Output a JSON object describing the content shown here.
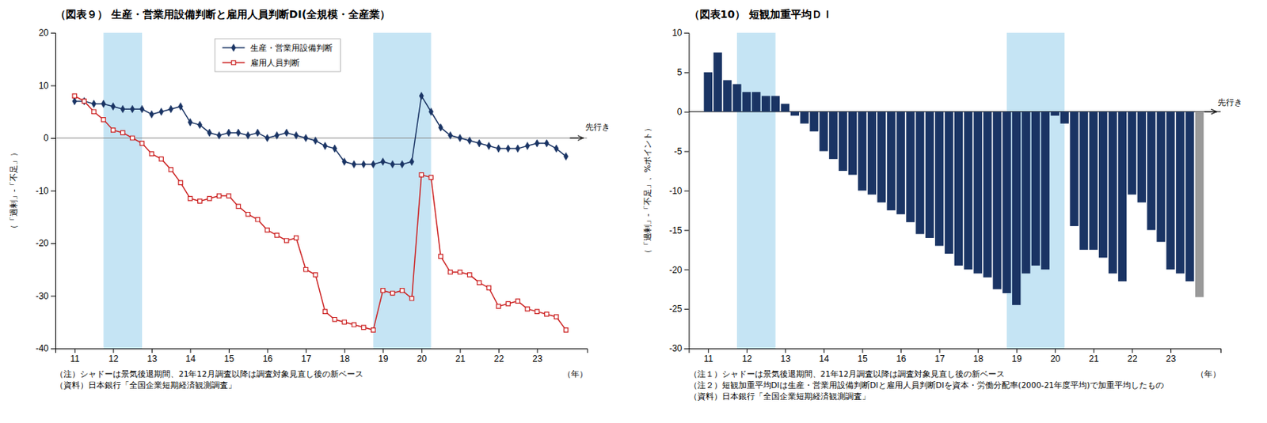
{
  "chart_data": [
    {
      "type": "line",
      "title": "（図表９）  生産・営業用設備判断と雇用人員判断DI(全規模・全産業）",
      "xlabel": "（年）",
      "ylabel": "（「過剰」-「不足」）",
      "x": [
        11.0,
        11.25,
        11.5,
        11.75,
        12.0,
        12.25,
        12.5,
        12.75,
        13.0,
        13.25,
        13.5,
        13.75,
        14.0,
        14.25,
        14.5,
        14.75,
        15.0,
        15.25,
        15.5,
        15.75,
        16.0,
        16.25,
        16.5,
        16.75,
        17.0,
        17.25,
        17.5,
        17.75,
        18.0,
        18.25,
        18.5,
        18.75,
        19.0,
        19.25,
        19.5,
        19.75,
        20.0,
        20.25,
        20.5,
        20.75,
        21.0,
        21.25,
        21.5,
        21.75,
        22.0,
        22.25,
        22.5,
        22.75,
        23.0,
        23.25,
        23.5,
        23.75
      ],
      "series": [
        {
          "name": "生産・営業用設備判断",
          "color": "#1a3464",
          "marker": "diamond",
          "values": [
            7.0,
            7.0,
            6.5,
            6.5,
            6.0,
            5.5,
            5.5,
            5.5,
            4.5,
            5.0,
            5.5,
            6.0,
            3.0,
            2.5,
            1.0,
            0.5,
            1.0,
            1.0,
            0.5,
            1.0,
            0.0,
            0.5,
            1.0,
            0.5,
            0.0,
            -0.5,
            -1.5,
            -2.0,
            -4.5,
            -5.0,
            -5.0,
            -5.0,
            -4.5,
            -5.0,
            -5.0,
            -4.5,
            8.0,
            5.0,
            2.0,
            0.5,
            0.0,
            -0.5,
            -1.0,
            -1.5,
            -2.0,
            -2.0,
            -2.0,
            -1.5,
            -1.0,
            -1.0,
            -2.0,
            -3.5
          ]
        },
        {
          "name": "雇用人員判断",
          "color": "#cc2222",
          "marker": "square-open",
          "values": [
            8.0,
            7.0,
            5.0,
            3.5,
            1.5,
            1.0,
            0.0,
            -1.0,
            -3.0,
            -4.0,
            -6.0,
            -8.5,
            -11.5,
            -12.0,
            -11.5,
            -11.0,
            -11.0,
            -13.0,
            -14.5,
            -15.5,
            -17.5,
            -18.5,
            -19.5,
            -19.0,
            -25.0,
            -26.0,
            -33.0,
            -34.5,
            -35.0,
            -35.5,
            -36.0,
            -36.5,
            -29.0,
            -29.5,
            -29.0,
            -30.5,
            -7.0,
            -7.5,
            -22.5,
            -25.5,
            -25.5,
            -26.0,
            -27.5,
            -28.5,
            -32.0,
            -31.5,
            -31.0,
            -32.5,
            -33.0,
            -33.5,
            -34.0,
            -36.5
          ]
        }
      ],
      "xlim": [
        10.5,
        24.3
      ],
      "xticks": [
        11,
        12,
        13,
        14,
        15,
        16,
        17,
        18,
        19,
        20,
        21,
        22,
        23
      ],
      "ylim": [
        -40,
        20
      ],
      "yticks": [
        -40,
        -30,
        -20,
        -10,
        0,
        10,
        20
      ],
      "grid": false,
      "legend": "upper center",
      "shaded_regions": [
        {
          "x": [
            11.75,
            12.75
          ],
          "color": "#add8f0"
        },
        {
          "x": [
            18.75,
            20.25
          ],
          "color": "#add8f0"
        }
      ],
      "reference_lines": [
        {
          "y": 0,
          "color": "#888888"
        }
      ],
      "annotations": [
        {
          "text": "先行き",
          "x": 24.25,
          "y": 1.5,
          "arrow": {
            "x": [
              23.85,
              24.2
            ],
            "y": 0
          }
        }
      ],
      "notes": [
        "（注）シャドーは景気後退期間、21年12月調査以降は調査対象見直し後の新ベース",
        "（資料）日本銀行「全国企業短期経済観測調査」"
      ]
    },
    {
      "type": "bar",
      "title": "（図表10）  短観加重平均ＤＩ",
      "xlabel": "（年）",
      "ylabel": "（「過剰」-「不足」、%ポイント）",
      "x": [
        11.0,
        11.25,
        11.5,
        11.75,
        12.0,
        12.25,
        12.5,
        12.75,
        13.0,
        13.25,
        13.5,
        13.75,
        14.0,
        14.25,
        14.5,
        14.75,
        15.0,
        15.25,
        15.5,
        15.75,
        16.0,
        16.25,
        16.5,
        16.75,
        17.0,
        17.25,
        17.5,
        17.75,
        18.0,
        18.25,
        18.5,
        18.75,
        19.0,
        19.25,
        19.5,
        19.75,
        20.0,
        20.25,
        20.5,
        20.75,
        21.0,
        21.25,
        21.5,
        21.75,
        22.0,
        22.25,
        22.5,
        22.75,
        23.0,
        23.25,
        23.5,
        23.75
      ],
      "values": [
        5.0,
        7.5,
        4.0,
        3.5,
        2.5,
        2.5,
        2.0,
        2.0,
        1.0,
        -0.5,
        -1.5,
        -2.5,
        -5.0,
        -6.0,
        -7.5,
        -8.0,
        -10.0,
        -10.5,
        -11.5,
        -12.5,
        -13.0,
        -14.0,
        -15.5,
        -16.0,
        -17.0,
        -18.0,
        -19.5,
        -20.0,
        -20.5,
        -21.0,
        -22.5,
        -23.0,
        -24.5,
        -20.5,
        -19.5,
        -20.0,
        -0.5,
        -1.5,
        -14.5,
        -17.5,
        -17.5,
        -18.5,
        -20.5,
        -21.5,
        -10.5,
        -11.5,
        -15.0,
        -16.5,
        -20.0,
        -20.5,
        -21.5,
        -23.5
      ],
      "colors": [
        "#1a3464",
        "#1a3464",
        "#1a3464",
        "#1a3464",
        "#1a3464",
        "#1a3464",
        "#1a3464",
        "#1a3464",
        "#1a3464",
        "#1a3464",
        "#1a3464",
        "#1a3464",
        "#1a3464",
        "#1a3464",
        "#1a3464",
        "#1a3464",
        "#1a3464",
        "#1a3464",
        "#1a3464",
        "#1a3464",
        "#1a3464",
        "#1a3464",
        "#1a3464",
        "#1a3464",
        "#1a3464",
        "#1a3464",
        "#1a3464",
        "#1a3464",
        "#1a3464",
        "#1a3464",
        "#1a3464",
        "#1a3464",
        "#1a3464",
        "#1a3464",
        "#1a3464",
        "#1a3464",
        "#1a3464",
        "#1a3464",
        "#1a3464",
        "#1a3464",
        "#1a3464",
        "#1a3464",
        "#1a3464",
        "#1a3464",
        "#1a3464",
        "#1a3464",
        "#1a3464",
        "#1a3464",
        "#1a3464",
        "#1a3464",
        "#1a3464",
        "#999999"
      ],
      "xlim": [
        10.5,
        24.3
      ],
      "xticks": [
        11,
        12,
        13,
        14,
        15,
        16,
        17,
        18,
        19,
        20,
        21,
        22,
        23
      ],
      "ylim": [
        -30,
        10
      ],
      "yticks": [
        -30,
        -25,
        -20,
        -15,
        -10,
        -5,
        0,
        5,
        10
      ],
      "grid": false,
      "shaded_regions": [
        {
          "x": [
            11.75,
            12.75
          ],
          "color": "#add8f0"
        },
        {
          "x": [
            18.75,
            20.25
          ],
          "color": "#add8f0"
        }
      ],
      "reference_lines": [
        {
          "y": 0,
          "color": "#000000"
        }
      ],
      "annotations": [
        {
          "text": "先行き",
          "x": 24.22,
          "y": 0.8,
          "arrow": {
            "x": [
              23.88,
              24.2
            ],
            "y": 0
          }
        }
      ],
      "notes": [
        "（注１）シャドーは景気後退期間、21年12月調査以降は調査対象見直し後の新ベース",
        "（注２）短観加重平均DIは生産・営業用設備判断DIと雇用人員判断DIを資本・労働分配率(2000-21年度平均)で加重平均したもの",
        "（資料）日本銀行「全国企業短期経済観測調査」"
      ]
    }
  ]
}
